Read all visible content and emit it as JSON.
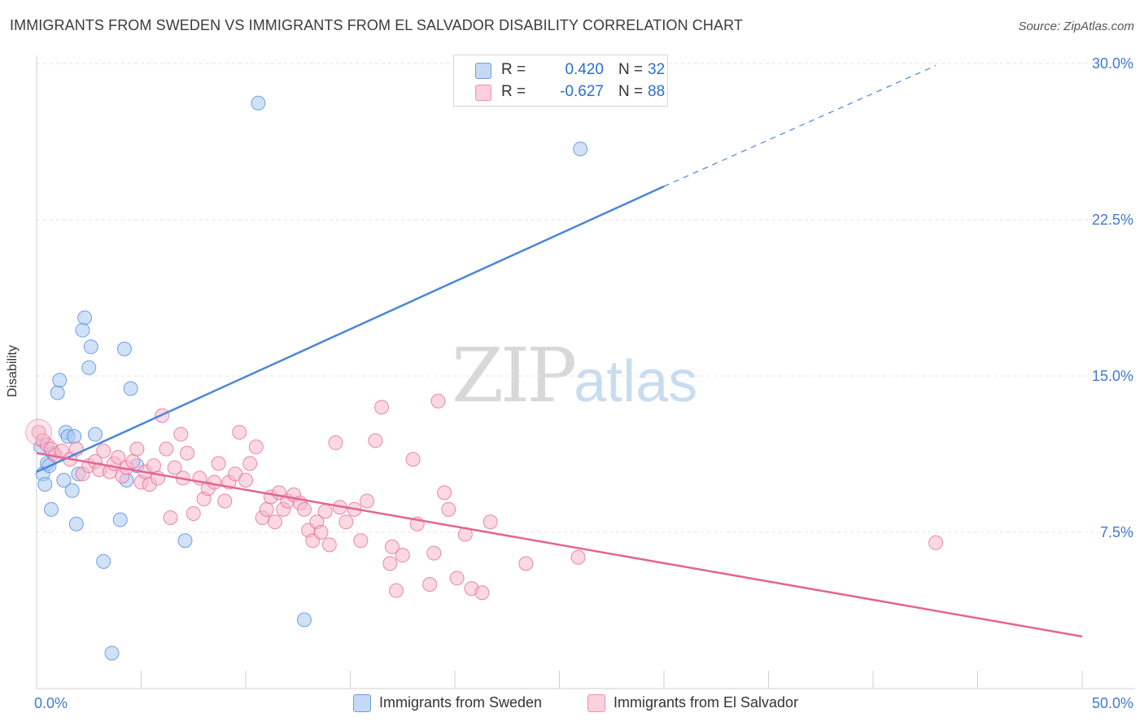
{
  "header": {
    "title": "IMMIGRANTS FROM SWEDEN VS IMMIGRANTS FROM EL SALVADOR DISABILITY CORRELATION CHART",
    "source": "Source: ZipAtlas.com"
  },
  "watermark": {
    "zip": "ZIP",
    "atlas": "atlas"
  },
  "legend": {
    "rows": [
      {
        "r_label": "R =",
        "r_value": "0.420",
        "n_label": "N =",
        "n_value": "32",
        "color": "#a9c8f2"
      },
      {
        "r_label": "R =",
        "r_value": "-0.627",
        "n_label": "N =",
        "n_value": "88",
        "color": "#f7b8cb"
      }
    ]
  },
  "bottom_legend": [
    {
      "label": "Immigrants from Sweden",
      "color": "#a9c8f2"
    },
    {
      "label": "Immigrants from El Salvador",
      "color": "#f7b8cb"
    }
  ],
  "chart_data": {
    "type": "scatter",
    "title": "IMMIGRANTS FROM SWEDEN VS IMMIGRANTS FROM EL SALVADOR DISABILITY CORRELATION CHART",
    "xlabel": "",
    "ylabel": "Disability",
    "xlim": [
      0,
      50
    ],
    "ylim": [
      0,
      30
    ],
    "x_tick_labels": [
      "0.0%",
      "50.0%"
    ],
    "y_ticks": [
      7.5,
      15.0,
      22.5,
      30.0
    ],
    "y_tick_labels": [
      "7.5%",
      "15.0%",
      "22.5%",
      "30.0%"
    ],
    "grid": "horizontal-dashed",
    "legend_position": "top-center",
    "series": [
      {
        "name": "Immigrants from Sweden",
        "color": "#4a86d8",
        "fill": "#a9c8f2",
        "r": 0.42,
        "n": 32,
        "trend": {
          "x0": 0,
          "y0": 10.4,
          "x1": 30,
          "y1": 24.1,
          "dash_to_x": 43,
          "dash_to_y": 29.9
        },
        "points": [
          [
            0.2,
            11.6
          ],
          [
            0.3,
            10.3
          ],
          [
            0.4,
            9.8
          ],
          [
            0.5,
            10.8
          ],
          [
            0.6,
            10.7
          ],
          [
            0.7,
            8.6
          ],
          [
            0.8,
            11.3
          ],
          [
            1.0,
            14.2
          ],
          [
            1.1,
            14.8
          ],
          [
            1.3,
            10.0
          ],
          [
            1.4,
            12.3
          ],
          [
            1.5,
            12.1
          ],
          [
            1.7,
            9.5
          ],
          [
            1.8,
            12.1
          ],
          [
            1.9,
            7.9
          ],
          [
            2.0,
            10.3
          ],
          [
            2.2,
            17.2
          ],
          [
            2.3,
            17.8
          ],
          [
            2.5,
            15.4
          ],
          [
            2.6,
            16.4
          ],
          [
            2.8,
            12.2
          ],
          [
            3.2,
            6.1
          ],
          [
            3.6,
            1.7
          ],
          [
            4.0,
            8.1
          ],
          [
            4.2,
            16.3
          ],
          [
            4.3,
            10.0
          ],
          [
            4.5,
            14.4
          ],
          [
            4.8,
            10.7
          ],
          [
            7.1,
            7.1
          ],
          [
            10.6,
            28.1
          ],
          [
            12.8,
            3.3
          ],
          [
            26.0,
            25.9
          ]
        ]
      },
      {
        "name": "Immigrants from El Salvador",
        "color": "#e26592",
        "fill": "#f7b8cb",
        "r": -0.627,
        "n": 88,
        "trend": {
          "x0": 0,
          "y0": 11.3,
          "x1": 50,
          "y1": 2.5
        },
        "points": [
          [
            0.1,
            12.3
          ],
          [
            0.3,
            11.9
          ],
          [
            0.5,
            11.7
          ],
          [
            0.7,
            11.5
          ],
          [
            0.9,
            11.2
          ],
          [
            1.2,
            11.4
          ],
          [
            1.6,
            11.0
          ],
          [
            1.9,
            11.5
          ],
          [
            2.2,
            10.3
          ],
          [
            2.5,
            10.7
          ],
          [
            2.8,
            10.9
          ],
          [
            3.0,
            10.5
          ],
          [
            3.2,
            11.4
          ],
          [
            3.5,
            10.4
          ],
          [
            3.7,
            10.8
          ],
          [
            3.9,
            11.1
          ],
          [
            4.1,
            10.2
          ],
          [
            4.3,
            10.6
          ],
          [
            4.6,
            10.9
          ],
          [
            4.8,
            11.5
          ],
          [
            5.0,
            9.9
          ],
          [
            5.2,
            10.4
          ],
          [
            5.4,
            9.8
          ],
          [
            5.6,
            10.7
          ],
          [
            5.8,
            10.1
          ],
          [
            6.0,
            13.1
          ],
          [
            6.2,
            11.5
          ],
          [
            6.4,
            8.2
          ],
          [
            6.6,
            10.6
          ],
          [
            6.9,
            12.2
          ],
          [
            7.0,
            10.1
          ],
          [
            7.2,
            11.3
          ],
          [
            7.5,
            8.4
          ],
          [
            7.8,
            10.1
          ],
          [
            8.0,
            9.1
          ],
          [
            8.2,
            9.6
          ],
          [
            8.5,
            9.9
          ],
          [
            8.7,
            10.8
          ],
          [
            9.0,
            9.0
          ],
          [
            9.2,
            9.9
          ],
          [
            9.5,
            10.3
          ],
          [
            9.7,
            12.3
          ],
          [
            10.0,
            10.0
          ],
          [
            10.2,
            10.8
          ],
          [
            10.5,
            11.6
          ],
          [
            10.8,
            8.2
          ],
          [
            11.0,
            8.6
          ],
          [
            11.2,
            9.2
          ],
          [
            11.4,
            8.0
          ],
          [
            11.6,
            9.4
          ],
          [
            11.8,
            8.6
          ],
          [
            12.0,
            9.0
          ],
          [
            12.3,
            9.3
          ],
          [
            12.6,
            8.9
          ],
          [
            12.8,
            8.6
          ],
          [
            13.0,
            7.6
          ],
          [
            13.2,
            7.1
          ],
          [
            13.4,
            8.0
          ],
          [
            13.6,
            7.5
          ],
          [
            13.8,
            8.5
          ],
          [
            14.0,
            6.9
          ],
          [
            14.3,
            11.8
          ],
          [
            14.5,
            8.7
          ],
          [
            14.8,
            8.0
          ],
          [
            15.2,
            8.6
          ],
          [
            15.5,
            7.1
          ],
          [
            15.8,
            9.0
          ],
          [
            16.2,
            11.9
          ],
          [
            16.5,
            13.5
          ],
          [
            16.9,
            6.0
          ],
          [
            17.0,
            6.8
          ],
          [
            17.2,
            4.7
          ],
          [
            17.5,
            6.4
          ],
          [
            18.0,
            11.0
          ],
          [
            18.2,
            7.9
          ],
          [
            18.8,
            5.0
          ],
          [
            19.2,
            13.8
          ],
          [
            19.0,
            6.5
          ],
          [
            19.5,
            9.4
          ],
          [
            19.7,
            8.6
          ],
          [
            20.1,
            5.3
          ],
          [
            20.5,
            7.4
          ],
          [
            20.8,
            4.8
          ],
          [
            21.3,
            4.6
          ],
          [
            21.7,
            8.0
          ],
          [
            23.4,
            6.0
          ],
          [
            25.9,
            6.3
          ],
          [
            43.0,
            7.0
          ]
        ]
      }
    ]
  }
}
